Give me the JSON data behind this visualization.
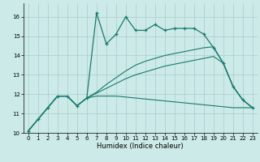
{
  "xlabel": "Humidex (Indice chaleur)",
  "background_color": "#cceae7",
  "grid_color": "#aacccc",
  "line_color": "#1a7a6e",
  "xlim": [
    -0.5,
    23.5
  ],
  "ylim": [
    10,
    16.7
  ],
  "yticks": [
    10,
    11,
    12,
    13,
    14,
    15,
    16
  ],
  "xticks": [
    0,
    1,
    2,
    3,
    4,
    5,
    6,
    7,
    8,
    9,
    10,
    11,
    12,
    13,
    14,
    15,
    16,
    17,
    18,
    19,
    20,
    21,
    22,
    23
  ],
  "series": [
    [
      10.1,
      10.7,
      11.3,
      11.9,
      11.9,
      11.4,
      11.8,
      16.2,
      14.6,
      15.1,
      16.0,
      15.3,
      15.3,
      15.6,
      15.3,
      15.4,
      15.4,
      15.4,
      15.1,
      14.4,
      13.6,
      12.4,
      11.7,
      11.3
    ],
    [
      10.1,
      10.7,
      11.3,
      11.9,
      11.9,
      11.4,
      11.8,
      11.9,
      11.9,
      11.9,
      11.85,
      11.8,
      11.75,
      11.7,
      11.65,
      11.6,
      11.55,
      11.5,
      11.45,
      11.4,
      11.35,
      11.3,
      11.3,
      11.3
    ],
    [
      10.1,
      10.7,
      11.3,
      11.9,
      11.9,
      11.4,
      11.8,
      12.05,
      12.3,
      12.55,
      12.8,
      13.0,
      13.15,
      13.3,
      13.45,
      13.55,
      13.65,
      13.75,
      13.85,
      13.95,
      13.6,
      12.4,
      11.7,
      11.3
    ],
    [
      10.1,
      10.7,
      11.3,
      11.9,
      11.9,
      11.4,
      11.8,
      12.1,
      12.5,
      12.85,
      13.2,
      13.5,
      13.7,
      13.85,
      14.0,
      14.1,
      14.2,
      14.3,
      14.4,
      14.45,
      13.6,
      12.4,
      11.7,
      11.3
    ]
  ],
  "markers": [
    true,
    false,
    false,
    false
  ]
}
